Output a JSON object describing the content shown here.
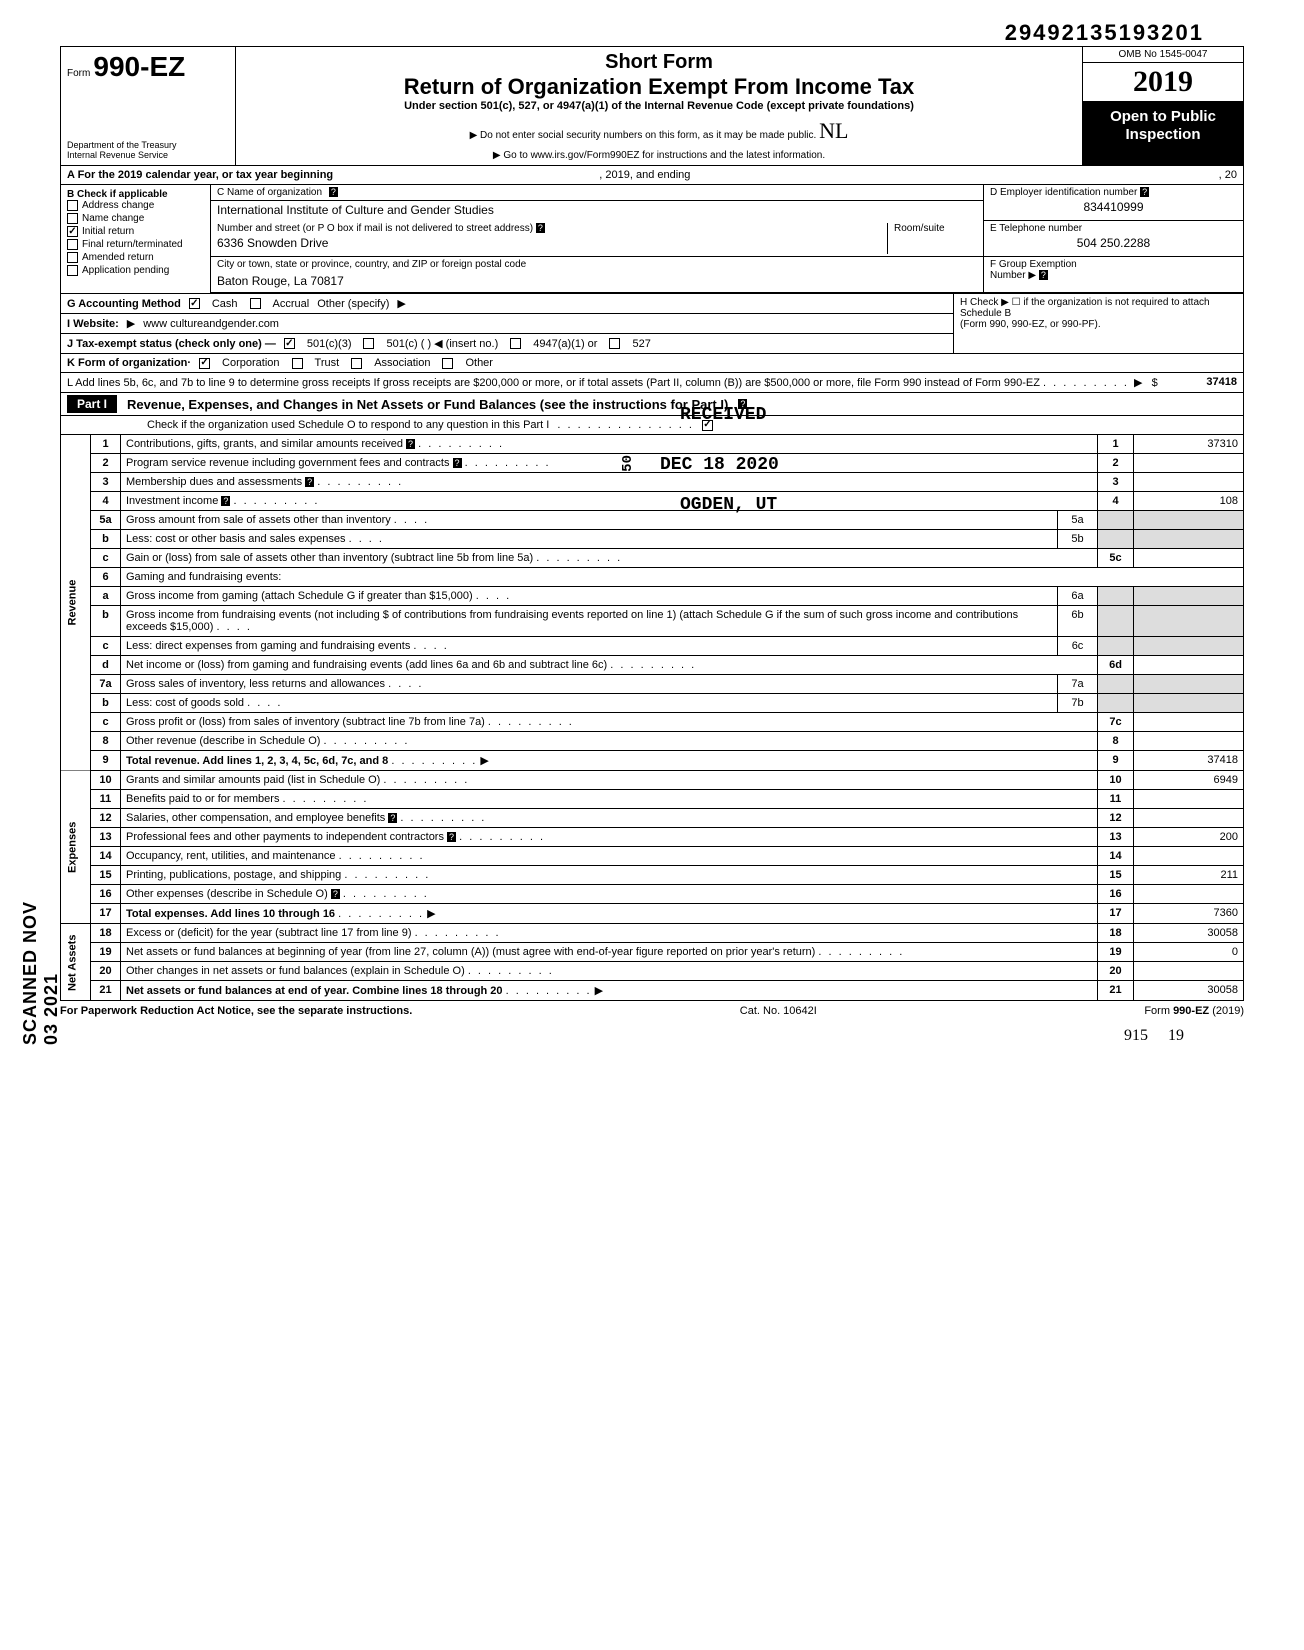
{
  "page_top_id": "29492135193201",
  "header": {
    "form_prefix": "Form",
    "form_number": "990-EZ",
    "dept1": "Department of the Treasury",
    "dept2": "Internal Revenue Service",
    "title1": "Short Form",
    "title2": "Return of Organization Exempt From Income Tax",
    "sub": "Under section 501(c), 527, or 4947(a)(1) of the Internal Revenue Code (except private foundations)",
    "note1": "Do not enter social security numbers on this form, as it may be made public.",
    "note2": "Go to www.irs.gov/Form990EZ for instructions and the latest information.",
    "omb": "OMB No  1545-0047",
    "year": "2019",
    "open1": "Open to Public",
    "open2": "Inspection",
    "initials": "NL"
  },
  "rowA": {
    "label": "A  For the 2019 calendar year, or tax year beginning",
    "mid": ", 2019, and ending",
    "end": ", 20"
  },
  "sectionB": {
    "title": "B  Check if applicable",
    "items": [
      {
        "label": "Address change",
        "checked": false
      },
      {
        "label": "Name change",
        "checked": false
      },
      {
        "label": "Initial return",
        "checked": true
      },
      {
        "label": "Final return/terminated",
        "checked": false
      },
      {
        "label": "Amended return",
        "checked": false
      },
      {
        "label": "Application pending",
        "checked": false
      }
    ]
  },
  "sectionC": {
    "label": "C  Name of organization",
    "name": "International Institute of Culture and Gender Studies",
    "street_label": "Number and street (or P O  box if mail is not delivered to street address)",
    "room_label": "Room/suite",
    "street": "6336 Snowden Drive",
    "city_label": "City or town, state or province, country, and ZIP or foreign postal code",
    "city": "Baton Rouge, La 70817"
  },
  "sectionD": {
    "label": "D  Employer identification number",
    "value": "834410999"
  },
  "sectionE": {
    "label": "E  Telephone number",
    "value": "504 250.2288"
  },
  "sectionF": {
    "label": "F  Group Exemption",
    "label2": "Number"
  },
  "lineG": {
    "label": "G  Accounting Method",
    "opts": [
      {
        "l": "Cash",
        "c": true
      },
      {
        "l": "Accrual",
        "c": false
      }
    ],
    "other": "Other (specify)"
  },
  "lineH": {
    "text": "H  Check ▶ ☐ if the organization is not required to attach Schedule B",
    "sub": "(Form 990, 990-EZ, or 990-PF)."
  },
  "lineI": {
    "label": "I  Website:",
    "value": "www cultureandgender.com"
  },
  "lineJ": {
    "label": "J  Tax-exempt status (check only one) —",
    "opts": [
      {
        "l": "501(c)(3)",
        "c": true
      },
      {
        "l": "501(c) (        ) ◀ (insert no.)",
        "c": false
      },
      {
        "l": "4947(a)(1) or",
        "c": false
      },
      {
        "l": "527",
        "c": false
      }
    ]
  },
  "lineK": {
    "label": "K  Form of organization·",
    "opts": [
      {
        "l": "Corporation",
        "c": true
      },
      {
        "l": "Trust",
        "c": false
      },
      {
        "l": "Association",
        "c": false
      },
      {
        "l": "Other",
        "c": false
      }
    ]
  },
  "lineL": {
    "text": "L  Add lines 5b, 6c, and 7b to line 9 to determine gross receipts  If gross receipts are $200,000 or more, or if total assets (Part II, column (B)) are $500,000 or more, file Form 990 instead of Form 990-EZ",
    "amount": "37418"
  },
  "partI": {
    "tag": "Part I",
    "title": "Revenue, Expenses, and Changes in Net Assets or Fund Balances (see the instructions for Part I)",
    "check_line": "Check if the organization used Schedule O to respond to any question in this Part I",
    "check_checked": true
  },
  "stamps": {
    "received": "RECEIVED",
    "date": "DEC 18 2020",
    "ogden": "OGDEN, UT",
    "irs_no": "50"
  },
  "scanned": "SCANNED NOV 03 2021",
  "sections": {
    "rev": "Revenue",
    "exp": "Expenses",
    "net": "Net Assets"
  },
  "rows": [
    {
      "n": "1",
      "d": "Contributions, gifts, grants, and similar amounts received",
      "r": "1",
      "a": "37310",
      "help": true
    },
    {
      "n": "2",
      "d": "Program service revenue including government fees and contracts",
      "r": "2",
      "a": "",
      "help": true
    },
    {
      "n": "3",
      "d": "Membership dues and assessments",
      "r": "3",
      "a": "",
      "help": true
    },
    {
      "n": "4",
      "d": "Investment income",
      "r": "4",
      "a": "108",
      "help": true
    },
    {
      "n": "5a",
      "d": "Gross amount from sale of assets other than inventory",
      "mini": "5a",
      "shade": true
    },
    {
      "n": "b",
      "d": "Less: cost or other basis and sales expenses",
      "mini": "5b",
      "shade": true
    },
    {
      "n": "c",
      "d": "Gain or (loss) from sale of assets other than inventory (subtract line 5b from line 5a)",
      "r": "5c",
      "a": ""
    },
    {
      "n": "6",
      "d": "Gaming and fundraising events:",
      "noboxes": true
    },
    {
      "n": "a",
      "d": "Gross income from gaming (attach Schedule G if greater than $15,000)",
      "mini": "6a",
      "shade": true
    },
    {
      "n": "b",
      "d": "Gross income from fundraising events (not including  $                        of contributions from fundraising events reported on line 1) (attach Schedule G if the sum of such gross income and contributions exceeds $15,000)",
      "mini": "6b",
      "shade": true
    },
    {
      "n": "c",
      "d": "Less: direct expenses from gaming and fundraising events",
      "mini": "6c",
      "shade": true
    },
    {
      "n": "d",
      "d": "Net income or (loss) from gaming and fundraising events (add lines 6a and 6b and subtract line 6c)",
      "r": "6d",
      "a": ""
    },
    {
      "n": "7a",
      "d": "Gross sales of inventory, less returns and allowances",
      "mini": "7a",
      "shade": true
    },
    {
      "n": "b",
      "d": "Less: cost of goods sold",
      "mini": "7b",
      "shade": true
    },
    {
      "n": "c",
      "d": "Gross profit or (loss) from sales of inventory (subtract line 7b from line 7a)",
      "r": "7c",
      "a": ""
    },
    {
      "n": "8",
      "d": "Other revenue (describe in Schedule O)",
      "r": "8",
      "a": ""
    },
    {
      "n": "9",
      "d": "Total revenue. Add lines 1, 2, 3, 4, 5c, 6d, 7c, and 8",
      "r": "9",
      "a": "37418",
      "bold": true,
      "arrow": true
    },
    {
      "n": "10",
      "d": "Grants and similar amounts paid (list in Schedule O)",
      "r": "10",
      "a": "6949"
    },
    {
      "n": "11",
      "d": "Benefits paid to or for members",
      "r": "11",
      "a": ""
    },
    {
      "n": "12",
      "d": "Salaries, other compensation, and employee benefits",
      "r": "12",
      "a": "",
      "help": true
    },
    {
      "n": "13",
      "d": "Professional fees and other payments to independent contractors",
      "r": "13",
      "a": "200",
      "help": true
    },
    {
      "n": "14",
      "d": "Occupancy, rent, utilities, and maintenance",
      "r": "14",
      "a": ""
    },
    {
      "n": "15",
      "d": "Printing, publications, postage, and shipping",
      "r": "15",
      "a": "211"
    },
    {
      "n": "16",
      "d": "Other expenses (describe in Schedule O)",
      "r": "16",
      "a": "",
      "help": true
    },
    {
      "n": "17",
      "d": "Total expenses. Add lines 10 through 16",
      "r": "17",
      "a": "7360",
      "bold": true,
      "arrow": true
    },
    {
      "n": "18",
      "d": "Excess or (deficit) for the year (subtract line 17 from line 9)",
      "r": "18",
      "a": "30058"
    },
    {
      "n": "19",
      "d": "Net assets or fund balances at beginning of year (from line 27, column (A)) (must agree with end-of-year figure reported on prior year's return)",
      "r": "19",
      "a": "0"
    },
    {
      "n": "20",
      "d": "Other changes in net assets or fund balances (explain in Schedule O)",
      "r": "20",
      "a": ""
    },
    {
      "n": "21",
      "d": "Net assets or fund balances at end of year. Combine lines 18 through 20",
      "r": "21",
      "a": "30058",
      "bold": true,
      "arrow": true
    }
  ],
  "footer": {
    "left": "For Paperwork Reduction Act Notice, see the separate instructions.",
    "mid": "Cat. No. 10642I",
    "right": "Form 990-EZ (2019)"
  },
  "pagecount": {
    "a": "915",
    "b": "19"
  }
}
